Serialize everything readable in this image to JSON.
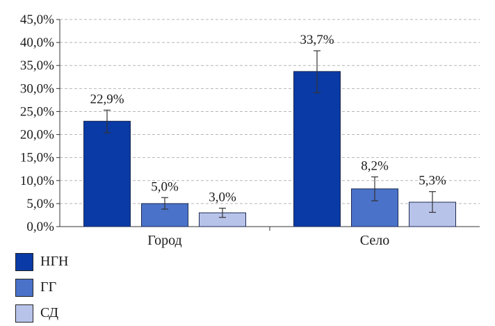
{
  "chart_data": {
    "type": "bar",
    "categories": [
      "Город",
      "Село"
    ],
    "series": [
      {
        "name": "НГН",
        "color": "#0a3aa5",
        "values": [
          22.9,
          33.7
        ],
        "labels": [
          "22,9%",
          "33,7%"
        ],
        "err_low": [
          20.4,
          29.1
        ],
        "err_high": [
          25.3,
          38.2
        ]
      },
      {
        "name": "ГГ",
        "color": "#4a72c9",
        "values": [
          5.0,
          8.2
        ],
        "labels": [
          "5,0%",
          "8,2%"
        ],
        "err_low": [
          3.8,
          5.6
        ],
        "err_high": [
          6.3,
          10.8
        ]
      },
      {
        "name": "СД",
        "color": "#b8c3ea",
        "values": [
          3.0,
          5.3
        ],
        "labels": [
          "3,0%",
          "5,3%"
        ],
        "err_low": [
          2.0,
          3.1
        ],
        "err_high": [
          4.0,
          7.6
        ]
      }
    ],
    "ylim": [
      0,
      45
    ],
    "yticks": [
      "0,0%",
      "5,0%",
      "10,0%",
      "15,0%",
      "20,0%",
      "25,0%",
      "30,0%",
      "35,0%",
      "40,0%",
      "45,0%"
    ],
    "grid": true,
    "legend_position": "bottom-left"
  }
}
